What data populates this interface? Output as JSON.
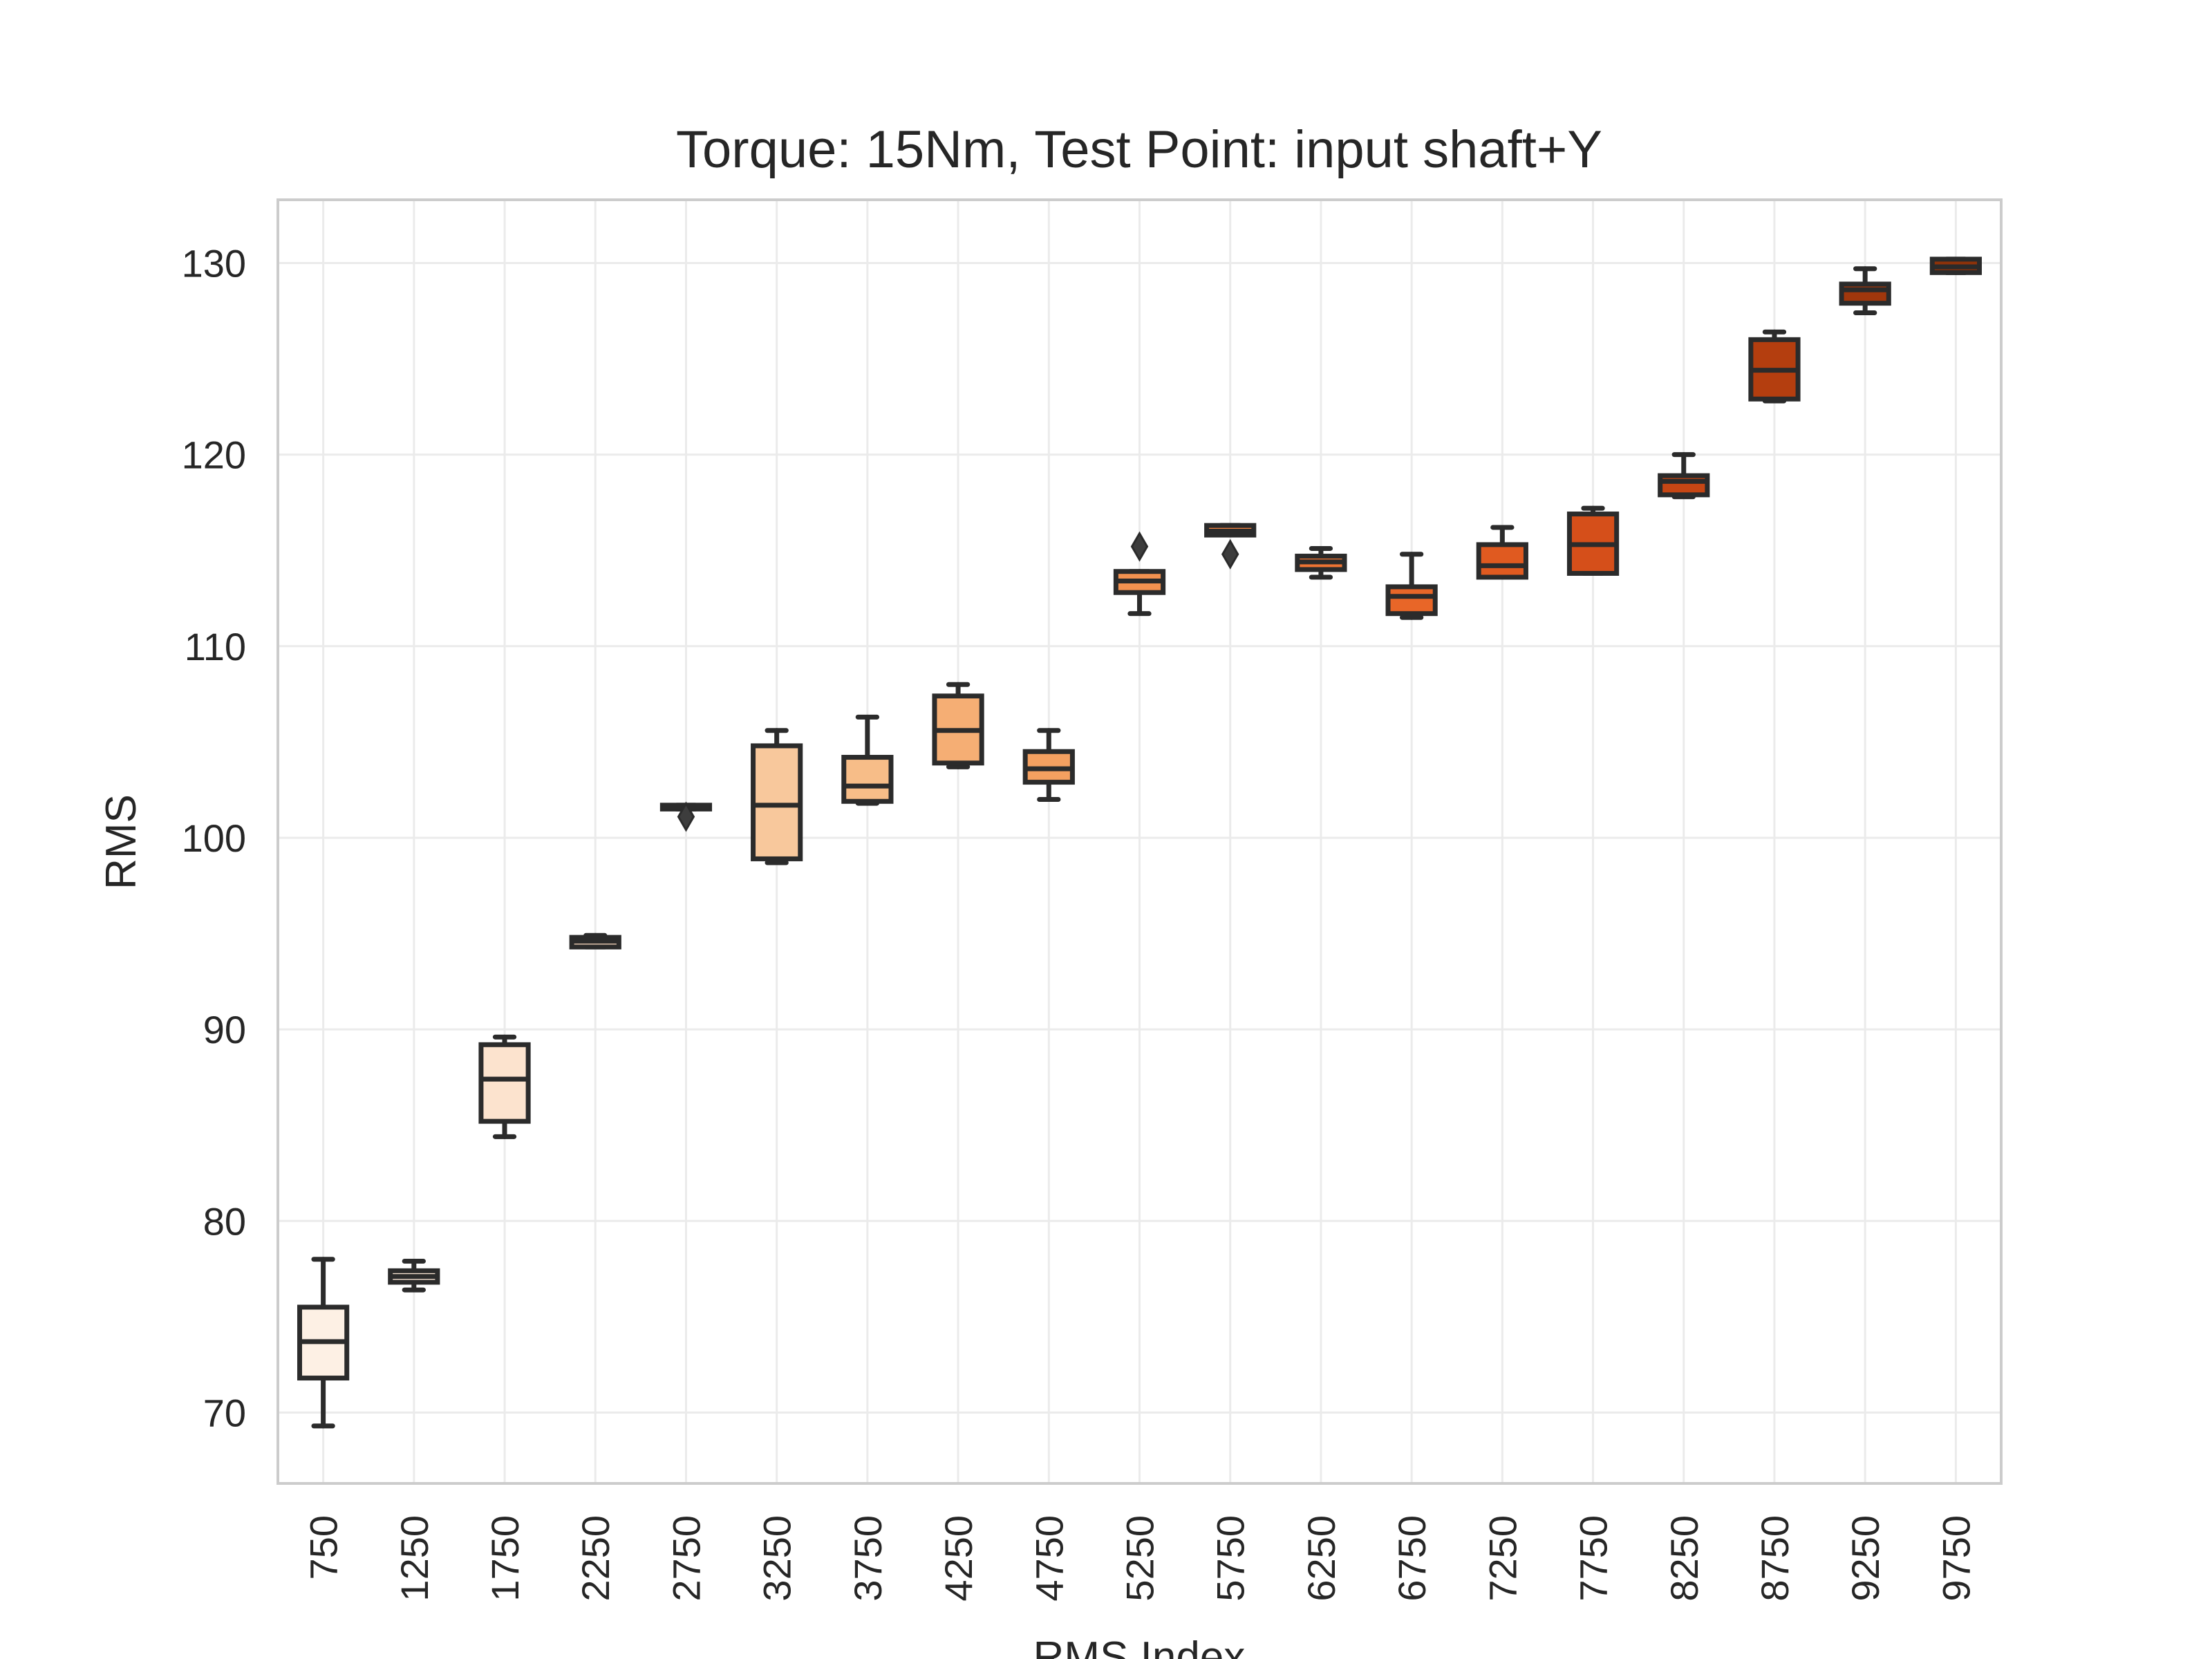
{
  "chart_data": {
    "type": "box",
    "title": "Torque: 15Nm, Test Point: input shaft+Y",
    "xlabel": "RMS Index",
    "ylabel": "RMS",
    "ylim": [
      66.3,
      133.3
    ],
    "yticks": [
      70,
      80,
      90,
      100,
      110,
      120,
      130
    ],
    "grid": true,
    "categories": [
      "750",
      "1250",
      "1750",
      "2250",
      "2750",
      "3250",
      "3750",
      "4250",
      "4750",
      "5250",
      "5750",
      "6250",
      "6750",
      "7250",
      "7750",
      "8250",
      "8750",
      "9250",
      "9750"
    ],
    "boxes": [
      {
        "x": "750",
        "whisker_low": 69.3,
        "q1": 71.8,
        "median": 73.7,
        "q3": 75.5,
        "whisker_high": 78.0,
        "fliers": [],
        "color": "#fdf0e4"
      },
      {
        "x": "1250",
        "whisker_low": 76.4,
        "q1": 76.8,
        "median": 77.1,
        "q3": 77.4,
        "whisker_high": 77.9,
        "fliers": [],
        "color": "#fde9d8"
      },
      {
        "x": "1750",
        "whisker_low": 84.4,
        "q1": 85.2,
        "median": 87.4,
        "q3": 89.2,
        "whisker_high": 89.6,
        "fliers": [],
        "color": "#fce3ce"
      },
      {
        "x": "2250",
        "whisker_low": 94.3,
        "q1": 94.3,
        "median": 94.6,
        "q3": 94.8,
        "whisker_high": 94.9,
        "fliers": [],
        "color": "#fbdbbf"
      },
      {
        "x": "2750",
        "whisker_low": 101.5,
        "q1": 101.5,
        "median": 101.6,
        "q3": 101.7,
        "whisker_high": 101.7,
        "fliers": [
          101.1
        ],
        "color": "#fad2ad"
      },
      {
        "x": "3250",
        "whisker_low": 98.7,
        "q1": 98.9,
        "median": 101.7,
        "q3": 104.8,
        "whisker_high": 105.6,
        "fliers": [],
        "color": "#f8c89c"
      },
      {
        "x": "3750",
        "whisker_low": 101.8,
        "q1": 101.9,
        "median": 102.7,
        "q3": 104.2,
        "whisker_high": 106.3,
        "fliers": [],
        "color": "#f7bd88"
      },
      {
        "x": "4250",
        "whisker_low": 103.7,
        "q1": 103.9,
        "median": 105.6,
        "q3": 107.4,
        "whisker_high": 108.0,
        "fliers": [],
        "color": "#f5ae74"
      },
      {
        "x": "4750",
        "whisker_low": 102.0,
        "q1": 102.9,
        "median": 103.6,
        "q3": 104.5,
        "whisker_high": 105.6,
        "fliers": [],
        "color": "#f4a060"
      },
      {
        "x": "5250",
        "whisker_low": 111.7,
        "q1": 112.8,
        "median": 113.4,
        "q3": 113.9,
        "whisker_high": 113.9,
        "fliers": [
          115.2
        ],
        "color": "#f2914f"
      },
      {
        "x": "5750",
        "whisker_low": 115.8,
        "q1": 115.8,
        "median": 116.0,
        "q3": 116.3,
        "whisker_high": 116.3,
        "fliers": [
          114.8
        ],
        "color": "#f18240"
      },
      {
        "x": "6250",
        "whisker_low": 113.6,
        "q1": 114.0,
        "median": 114.4,
        "q3": 114.7,
        "whisker_high": 115.1,
        "fliers": [],
        "color": "#ee7433"
      },
      {
        "x": "6750",
        "whisker_low": 111.5,
        "q1": 111.7,
        "median": 112.6,
        "q3": 113.1,
        "whisker_high": 114.8,
        "fliers": [],
        "color": "#e86628"
      },
      {
        "x": "7250",
        "whisker_low": 113.6,
        "q1": 113.6,
        "median": 114.2,
        "q3": 115.3,
        "whisker_high": 116.2,
        "fliers": [],
        "color": "#e05a20"
      },
      {
        "x": "7750",
        "whisker_low": 113.8,
        "q1": 113.8,
        "median": 115.3,
        "q3": 116.9,
        "whisker_high": 117.2,
        "fliers": [],
        "color": "#d54f1a"
      },
      {
        "x": "8250",
        "whisker_low": 117.8,
        "q1": 117.9,
        "median": 118.6,
        "q3": 118.9,
        "whisker_high": 120.0,
        "fliers": [],
        "color": "#c64614"
      },
      {
        "x": "8750",
        "whisker_low": 122.8,
        "q1": 122.9,
        "median": 124.4,
        "q3": 126.0,
        "whisker_high": 126.4,
        "fliers": [],
        "color": "#b43e0f"
      },
      {
        "x": "9250",
        "whisker_low": 127.4,
        "q1": 127.9,
        "median": 128.6,
        "q3": 128.9,
        "whisker_high": 129.7,
        "fliers": [],
        "color": "#a0370c"
      },
      {
        "x": "9750",
        "whisker_low": 129.5,
        "q1": 129.5,
        "median": 129.8,
        "q3": 130.2,
        "whisker_high": 130.2,
        "fliers": [],
        "color": "#8f3209"
      }
    ]
  }
}
